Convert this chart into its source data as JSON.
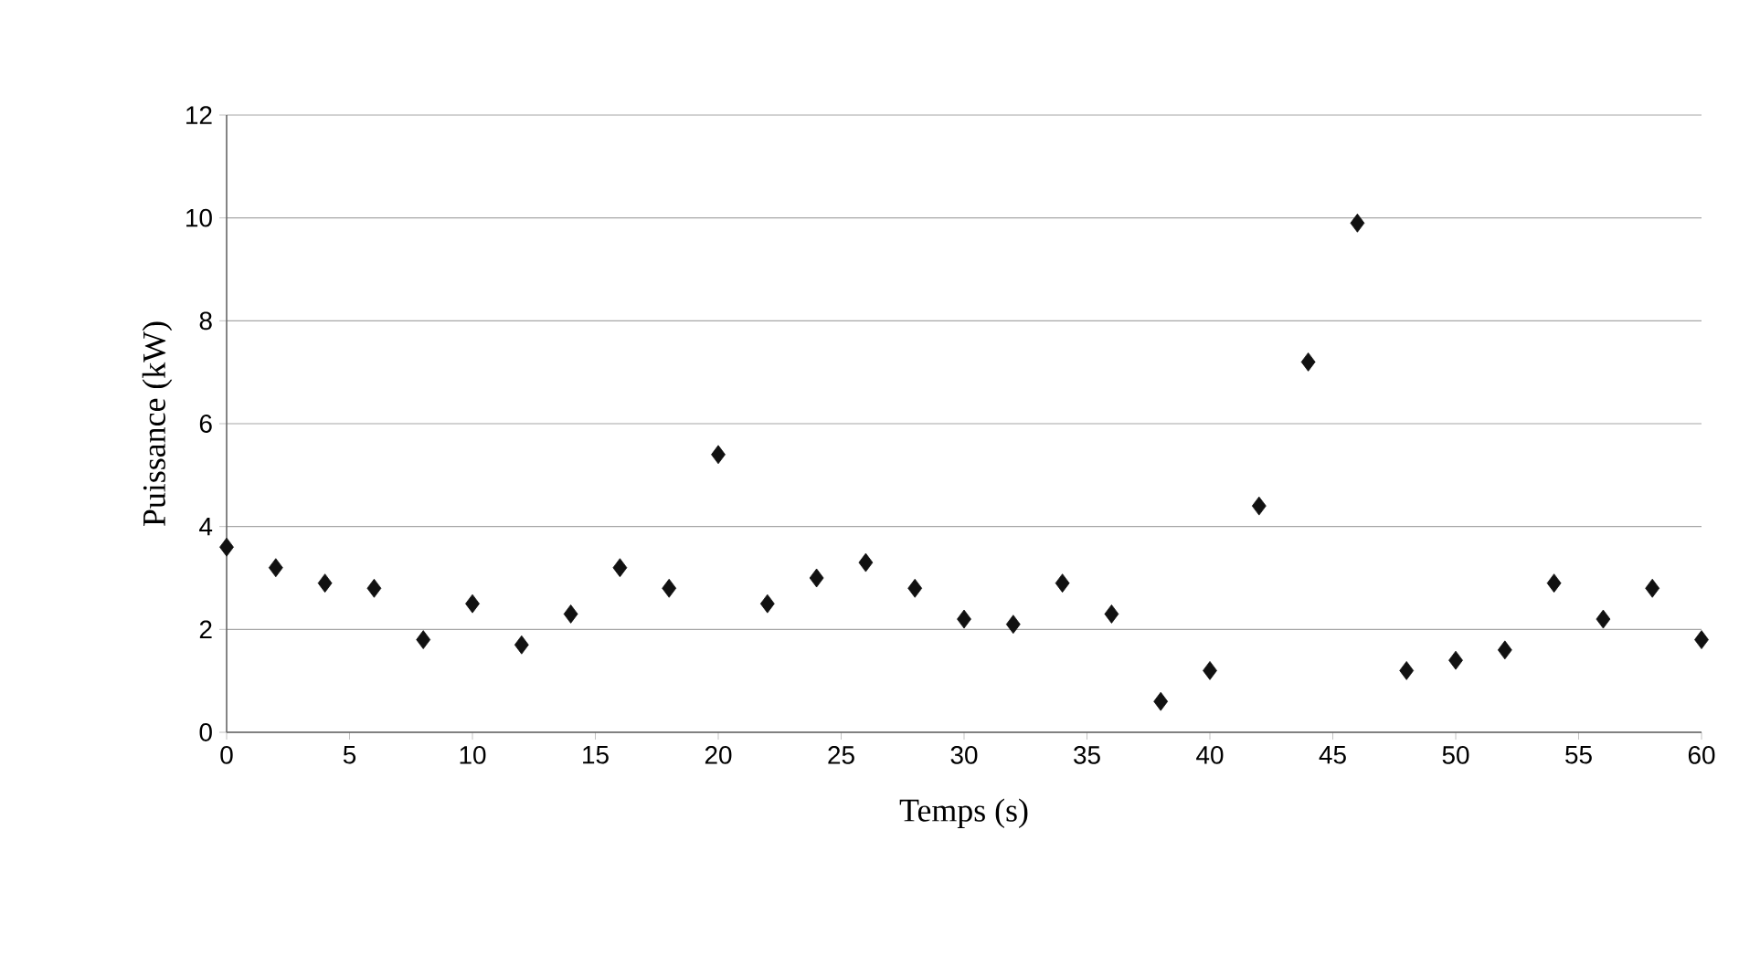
{
  "chart_data": {
    "type": "scatter",
    "xlabel": "Temps (s)",
    "ylabel": "Puissance (kW)",
    "x": [
      0,
      2,
      4,
      6,
      8,
      10,
      12,
      14,
      16,
      18,
      20,
      22,
      24,
      26,
      28,
      30,
      32,
      34,
      36,
      38,
      40,
      42,
      44,
      46,
      48,
      50,
      52,
      54,
      56,
      58,
      60
    ],
    "values": [
      3.6,
      3.2,
      2.9,
      2.8,
      1.8,
      2.5,
      1.7,
      2.3,
      3.2,
      2.8,
      5.4,
      2.5,
      3.0,
      3.3,
      2.8,
      2.2,
      2.1,
      2.9,
      2.3,
      0.6,
      1.2,
      4.4,
      7.2,
      9.9,
      1.2,
      1.4,
      1.6,
      2.9,
      2.2,
      2.8,
      1.8
    ],
    "color": "#111111",
    "marker": "diamond",
    "xlim": [
      0,
      60
    ],
    "xticks": [
      0,
      5,
      10,
      15,
      20,
      25,
      30,
      35,
      40,
      45,
      50,
      55,
      60
    ],
    "ylim": [
      0,
      12
    ],
    "yticks": [
      0,
      2,
      4,
      6,
      8,
      10,
      12
    ],
    "grid": "y"
  }
}
